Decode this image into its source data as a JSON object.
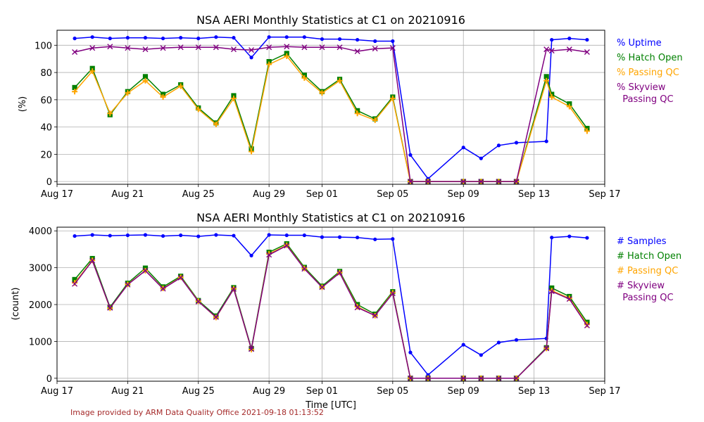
{
  "footer": {
    "text": "Image provided by ARM Data Quality Office 2021-09-18 01:13:52",
    "color": "#a52a2a"
  },
  "xaxis": {
    "label": "Time [UTC]",
    "ticks": [
      {
        "day": 0,
        "label": "Aug 17"
      },
      {
        "day": 4,
        "label": "Aug 21"
      },
      {
        "day": 8,
        "label": "Aug 25"
      },
      {
        "day": 12,
        "label": "Aug 29"
      },
      {
        "day": 15,
        "label": "Sep 01"
      },
      {
        "day": 19,
        "label": "Sep 05"
      },
      {
        "day": 23,
        "label": "Sep 09"
      },
      {
        "day": 27,
        "label": "Sep 13"
      },
      {
        "day": 31,
        "label": "Sep 17"
      }
    ],
    "range": [
      0,
      31
    ]
  },
  "chart_data": [
    {
      "type": "line",
      "title": "NSA AERI Monthly Statistics at C1 on 20210916",
      "ylabel": "(%)",
      "ylim": [
        -2,
        111
      ],
      "yticks": [
        0,
        20,
        40,
        60,
        80,
        100
      ],
      "series": [
        {
          "name": "% Uptime",
          "color": "#0000ff",
          "marker": "dot",
          "x": [
            1,
            2,
            3,
            4,
            5,
            6,
            7,
            8,
            9,
            10,
            11,
            12,
            13,
            14,
            15,
            16,
            17,
            18,
            19,
            20,
            21,
            23,
            24,
            25,
            26,
            27.7,
            28,
            29,
            30
          ],
          "values": [
            105,
            106,
            105,
            105.5,
            105.5,
            105,
            105.5,
            105,
            106,
            105.5,
            91,
            106,
            106,
            106,
            104.5,
            104.5,
            104,
            103,
            103,
            19.5,
            2,
            25,
            17,
            26.5,
            28.5,
            29.5,
            104,
            105,
            104
          ]
        },
        {
          "name": "% Hatch Open",
          "color": "#008000",
          "marker": "square",
          "x": [
            1,
            2,
            3,
            4,
            5,
            6,
            7,
            8,
            9,
            10,
            11,
            12,
            13,
            14,
            15,
            16,
            17,
            18,
            19,
            20,
            21,
            23,
            24,
            25,
            26,
            27.7,
            28,
            29,
            30
          ],
          "values": [
            69,
            83,
            49,
            66,
            77,
            64,
            71,
            54,
            43,
            63,
            24,
            88,
            94,
            78,
            66,
            75,
            52,
            46,
            62,
            0,
            0,
            0,
            0,
            0,
            0,
            77,
            64,
            57,
            39
          ]
        },
        {
          "name": "% Passing QC",
          "color": "#ffa500",
          "marker": "plus",
          "x": [
            1,
            2,
            3,
            4,
            5,
            6,
            7,
            8,
            9,
            10,
            11,
            12,
            13,
            14,
            15,
            16,
            17,
            18,
            19,
            20,
            21,
            23,
            24,
            25,
            26,
            27.7,
            28,
            29,
            30
          ],
          "values": [
            66,
            81,
            50,
            65,
            74,
            62,
            70,
            53,
            42,
            61,
            22,
            86,
            92,
            76,
            65,
            74,
            50,
            45,
            61,
            0,
            0,
            0,
            0,
            0,
            0,
            74,
            62,
            55,
            37
          ]
        },
        {
          "name": "% Skyview\n  Passing QC",
          "color": "#800080",
          "marker": "x",
          "x": [
            1,
            2,
            3,
            4,
            5,
            6,
            7,
            8,
            9,
            10,
            11,
            12,
            13,
            14,
            15,
            16,
            17,
            18,
            19,
            20,
            21,
            23,
            24,
            25,
            26,
            27.7,
            28,
            29,
            30
          ],
          "values": [
            95,
            98,
            99,
            98,
            97,
            98,
            98.5,
            98.5,
            98.5,
            97,
            96.5,
            98.5,
            99,
            98.5,
            98.5,
            98.5,
            95.5,
            97.5,
            98,
            0,
            0,
            0,
            0,
            0,
            0,
            97,
            96,
            97,
            95
          ]
        }
      ]
    },
    {
      "type": "line",
      "title": "NSA AERI Monthly Statistics at C1 on 20210916",
      "ylabel": "(count)",
      "ylim": [
        -80,
        4100
      ],
      "yticks": [
        0,
        1000,
        2000,
        3000,
        4000
      ],
      "series": [
        {
          "name": "# Samples",
          "color": "#0000ff",
          "marker": "dot",
          "x": [
            1,
            2,
            3,
            4,
            5,
            6,
            7,
            8,
            9,
            10,
            11,
            12,
            13,
            14,
            15,
            16,
            17,
            18,
            19,
            20,
            21,
            23,
            24,
            25,
            26,
            27.7,
            28,
            29,
            30
          ],
          "values": [
            3860,
            3890,
            3870,
            3880,
            3890,
            3860,
            3880,
            3850,
            3890,
            3870,
            3330,
            3890,
            3880,
            3880,
            3830,
            3830,
            3820,
            3770,
            3780,
            700,
            90,
            910,
            630,
            970,
            1040,
            1080,
            3820,
            3850,
            3810
          ]
        },
        {
          "name": "# Hatch Open",
          "color": "#008000",
          "marker": "square",
          "x": [
            1,
            2,
            3,
            4,
            5,
            6,
            7,
            8,
            9,
            10,
            11,
            12,
            13,
            14,
            15,
            16,
            17,
            18,
            19,
            20,
            21,
            23,
            24,
            25,
            26,
            27.7,
            28,
            29,
            30
          ],
          "values": [
            2680,
            3250,
            1930,
            2580,
            2990,
            2480,
            2770,
            2110,
            1690,
            2460,
            810,
            3420,
            3650,
            3010,
            2500,
            2900,
            2000,
            1740,
            2350,
            0,
            0,
            0,
            0,
            0,
            0,
            830,
            2450,
            2220,
            1520
          ]
        },
        {
          "name": "# Passing QC",
          "color": "#ffa500",
          "marker": "plus",
          "x": [
            1,
            2,
            3,
            4,
            5,
            6,
            7,
            8,
            9,
            10,
            11,
            12,
            13,
            14,
            15,
            16,
            17,
            18,
            19,
            20,
            21,
            23,
            24,
            25,
            26,
            27.7,
            28,
            29,
            30
          ],
          "values": [
            2590,
            3200,
            1900,
            2550,
            2920,
            2440,
            2740,
            2090,
            1650,
            2430,
            780,
            3380,
            3610,
            2980,
            2470,
            2870,
            1940,
            1700,
            2320,
            0,
            0,
            0,
            0,
            0,
            0,
            810,
            2380,
            2170,
            1460
          ]
        },
        {
          "name": "# Skyview\n  Passing QC",
          "color": "#800080",
          "marker": "x",
          "x": [
            1,
            2,
            3,
            4,
            5,
            6,
            7,
            8,
            9,
            10,
            11,
            12,
            13,
            14,
            15,
            16,
            17,
            18,
            19,
            20,
            21,
            23,
            24,
            25,
            26,
            27.7,
            28,
            29,
            30
          ],
          "values": [
            2560,
            3190,
            1910,
            2540,
            2920,
            2430,
            2730,
            2080,
            1660,
            2420,
            790,
            3350,
            3600,
            2970,
            2470,
            2860,
            1920,
            1700,
            2300,
            0,
            0,
            0,
            0,
            0,
            0,
            810,
            2360,
            2150,
            1430
          ]
        }
      ]
    }
  ]
}
